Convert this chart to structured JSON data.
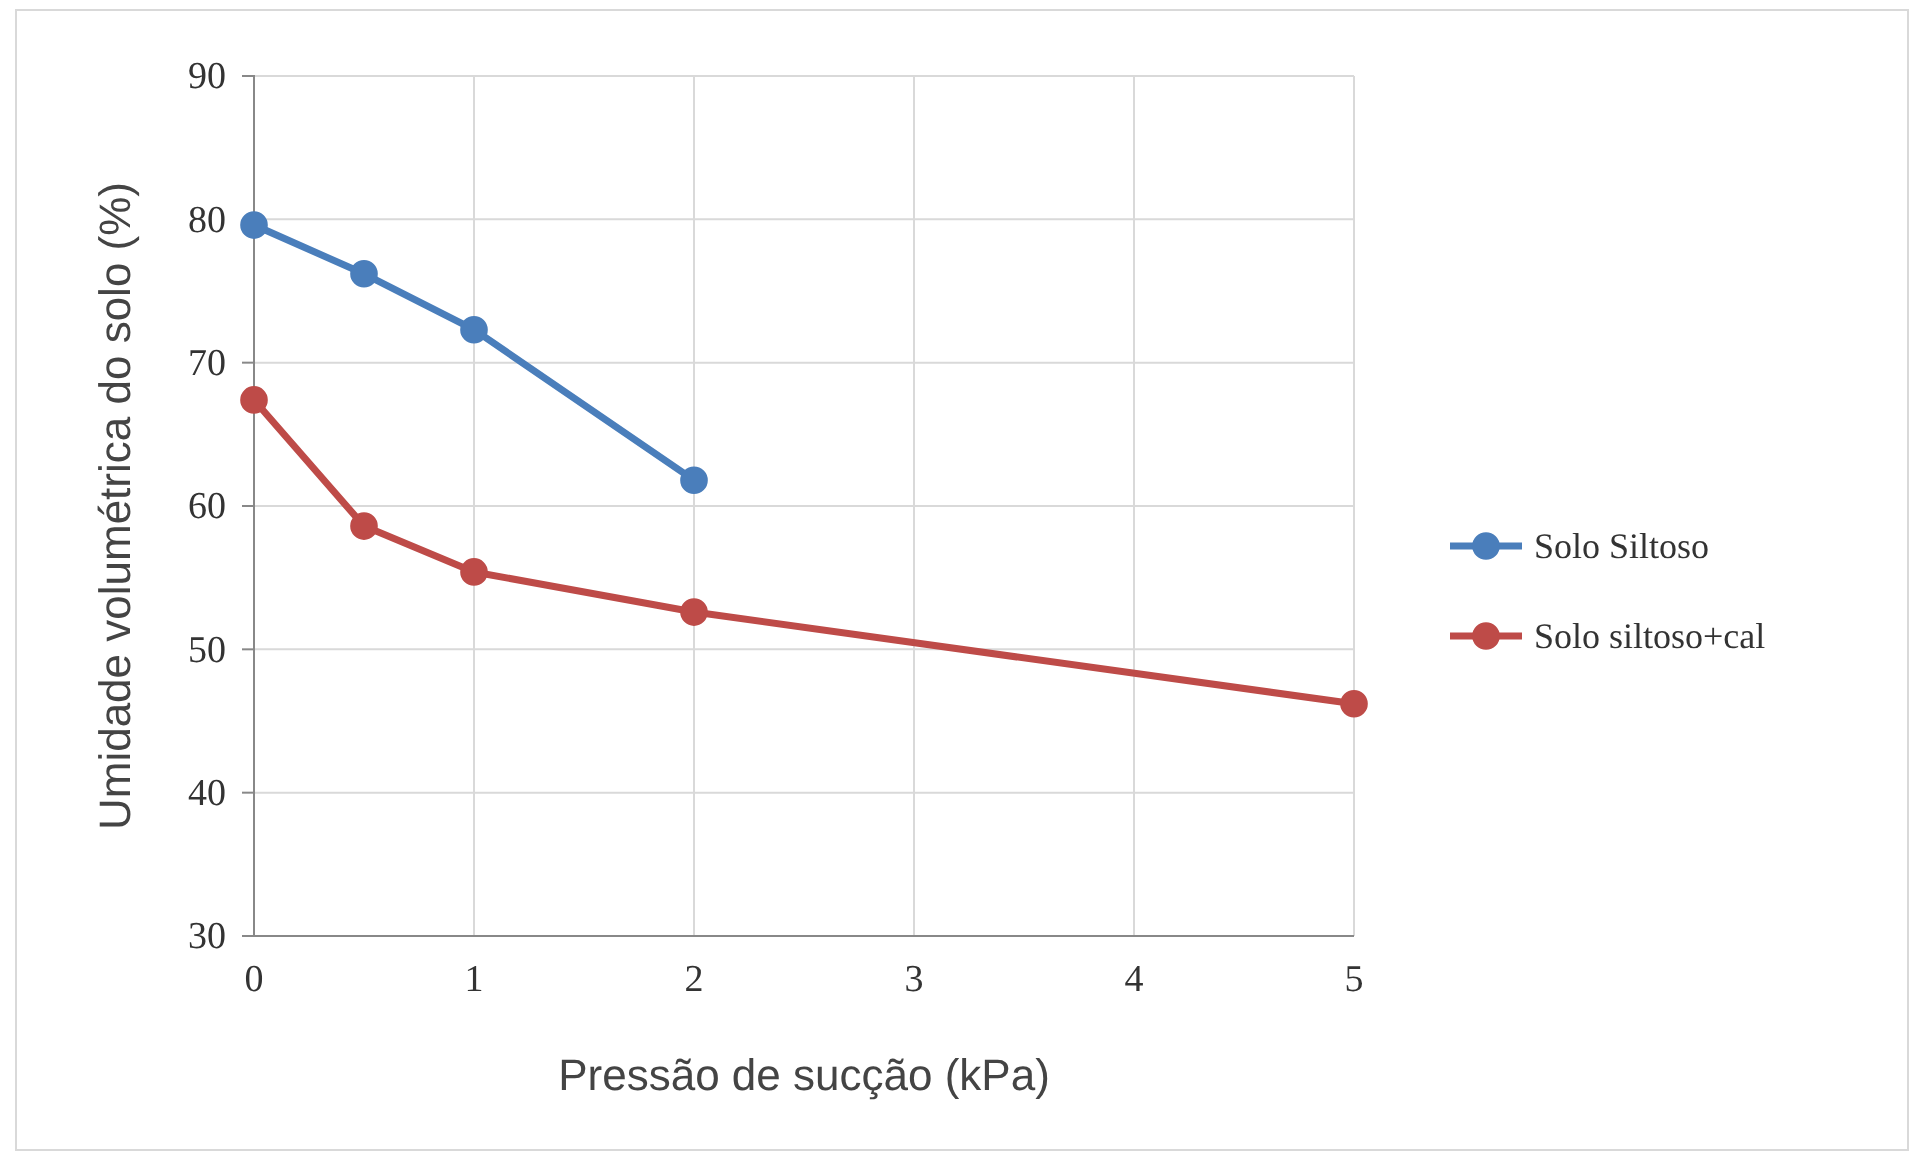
{
  "chart_data": {
    "type": "line",
    "xlabel": "Pressão de sucção (kPa)",
    "ylabel": "Umidade volumétrica do solo (%)",
    "xlim": [
      0,
      5
    ],
    "xticks": [
      0,
      1,
      2,
      3,
      4,
      5
    ],
    "ylim": [
      30,
      90
    ],
    "yticks": [
      30,
      40,
      50,
      60,
      70,
      80,
      90
    ],
    "grid": true,
    "legend": "right",
    "marker": "circle",
    "line_style": "solid",
    "series": [
      {
        "name": "Solo Siltoso",
        "color": "#4a7ebb",
        "x": [
          0,
          0.5,
          1,
          2
        ],
        "values": [
          79.6,
          76.2,
          72.3,
          61.8
        ]
      },
      {
        "name": "Solo siltoso+cal",
        "color": "#be4b48",
        "x": [
          0,
          0.5,
          1,
          2,
          5
        ],
        "values": [
          67.4,
          58.6,
          55.4,
          52.6,
          46.2
        ]
      }
    ]
  }
}
